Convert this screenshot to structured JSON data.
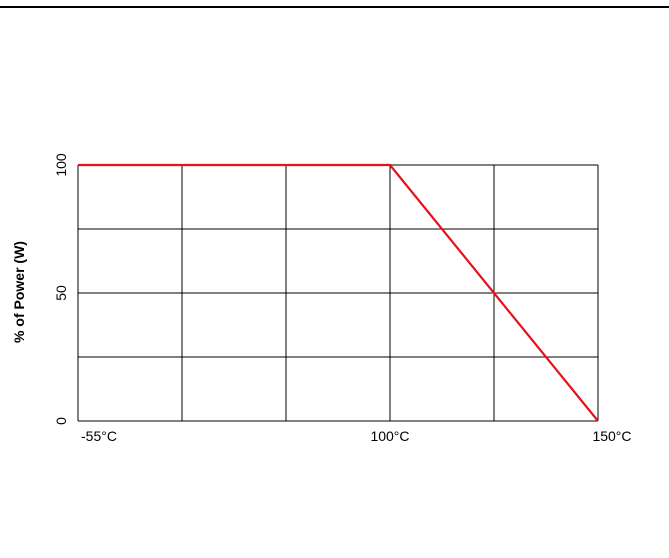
{
  "chart_data": {
    "type": "line",
    "title": "",
    "xlabel": "",
    "ylabel": "% of Power (W)",
    "x_tick_labels": [
      {
        "value": -55,
        "label": "-55°C"
      },
      {
        "value": 100,
        "label": "100°C"
      },
      {
        "value": 150,
        "label": "150°C"
      }
    ],
    "y_tick_labels": [
      {
        "value": 0,
        "label": "0"
      },
      {
        "value": 50,
        "label": "50"
      },
      {
        "value": 100,
        "label": "100"
      }
    ],
    "series": [
      {
        "color": "#e8101a",
        "x": [
          -55,
          100,
          150
        ],
        "y": [
          100,
          100,
          0
        ]
      }
    ],
    "grid": true,
    "grid_columns": 5,
    "grid_rows": 4,
    "ylim": [
      0,
      100
    ]
  }
}
